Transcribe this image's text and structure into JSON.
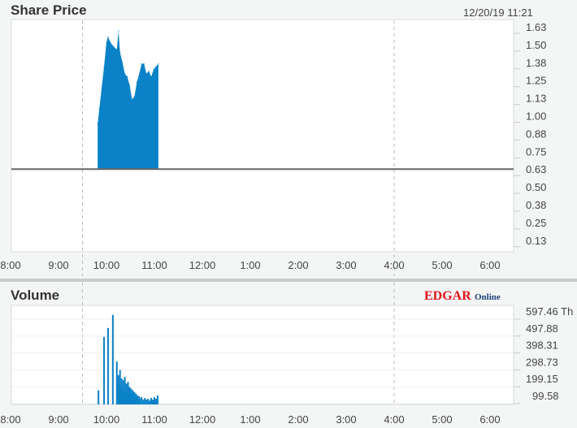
{
  "header": {
    "title": "Share Price",
    "timestamp": "12/20/19  11:21"
  },
  "volume_panel": {
    "title": "Volume",
    "logo_text": "EDGAR Online"
  },
  "colors": {
    "series": "#0b82c8",
    "baseline": "#666666",
    "grid": "#bbbbbb",
    "logo_red": "#e0121b",
    "logo_blue": "#1c3f7c"
  },
  "chart_data": [
    {
      "type": "area",
      "title": "Share Price",
      "x_ticks": [
        "8:00",
        "9:00",
        "10:00",
        "11:00",
        "12:00",
        "1:00",
        "2:00",
        "3:00",
        "4:00",
        "5:00",
        "6:00"
      ],
      "y_ticks": [
        "1.63",
        "1.50",
        "1.38",
        "1.25",
        "1.13",
        "1.00",
        "0.88",
        "0.75",
        "0.63",
        "0.50",
        "0.38",
        "0.25",
        "0.13"
      ],
      "ylim": [
        0.05,
        1.66
      ],
      "reference_line": 0.63,
      "session_markers": [
        "9:30",
        "16:00"
      ],
      "grid": false,
      "points": [
        [
          "9:49",
          0.95
        ],
        [
          "9:51",
          1.05
        ],
        [
          "9:54",
          1.2
        ],
        [
          "9:57",
          1.35
        ],
        [
          "10:00",
          1.52
        ],
        [
          "10:02",
          1.56
        ],
        [
          "10:05",
          1.52
        ],
        [
          "10:09",
          1.49
        ],
        [
          "10:13",
          1.47
        ],
        [
          "10:15",
          1.6
        ],
        [
          "10:17",
          1.45
        ],
        [
          "10:20",
          1.38
        ],
        [
          "10:23",
          1.3
        ],
        [
          "10:26",
          1.28
        ],
        [
          "10:29",
          1.22
        ],
        [
          "10:32",
          1.12
        ],
        [
          "10:35",
          1.14
        ],
        [
          "10:38",
          1.24
        ],
        [
          "10:41",
          1.3
        ],
        [
          "10:44",
          1.37
        ],
        [
          "10:47",
          1.37
        ],
        [
          "10:50",
          1.3
        ],
        [
          "10:53",
          1.32
        ],
        [
          "10:56",
          1.28
        ],
        [
          "10:59",
          1.33
        ],
        [
          "11:02",
          1.35
        ],
        [
          "11:05",
          1.37
        ]
      ]
    },
    {
      "type": "bar",
      "title": "Volume",
      "y_unit": "Th",
      "x_ticks": [
        "8:00",
        "9:00",
        "10:00",
        "11:00",
        "12:00",
        "1:00",
        "2:00",
        "3:00",
        "4:00",
        "5:00",
        "6:00"
      ],
      "y_ticks": [
        "597.46 Th",
        "497.88",
        "398.31",
        "298.73",
        "199.15",
        "99.58"
      ],
      "grid": true,
      "bars": [
        [
          "9:50",
          130
        ],
        [
          "9:57",
          445
        ],
        [
          "10:02",
          498
        ],
        [
          "10:08",
          575
        ],
        [
          "10:13",
          300
        ],
        [
          "10:14",
          180
        ],
        [
          "10:15",
          220
        ],
        [
          "10:16",
          160
        ],
        [
          "10:17",
          250
        ],
        [
          "10:18",
          150
        ],
        [
          "10:19",
          200
        ],
        [
          "10:20",
          140
        ],
        [
          "10:21",
          190
        ],
        [
          "10:22",
          130
        ],
        [
          "10:23",
          210
        ],
        [
          "10:24",
          120
        ],
        [
          "10:25",
          170
        ],
        [
          "10:26",
          120
        ],
        [
          "10:27",
          180
        ],
        [
          "10:28",
          110
        ],
        [
          "10:29",
          150
        ],
        [
          "10:30",
          110
        ],
        [
          "10:31",
          140
        ],
        [
          "10:32",
          100
        ],
        [
          "10:33",
          130
        ],
        [
          "10:34",
          95
        ],
        [
          "10:35",
          120
        ],
        [
          "10:36",
          90
        ],
        [
          "10:37",
          110
        ],
        [
          "10:38",
          85
        ],
        [
          "10:39",
          100
        ],
        [
          "10:40",
          80
        ],
        [
          "10:41",
          95
        ],
        [
          "10:42",
          80
        ],
        [
          "10:44",
          90
        ],
        [
          "10:46",
          75
        ],
        [
          "10:48",
          85
        ],
        [
          "10:50",
          75
        ],
        [
          "10:52",
          80
        ],
        [
          "10:54",
          70
        ],
        [
          "10:56",
          85
        ],
        [
          "10:58",
          75
        ],
        [
          "11:00",
          90
        ],
        [
          "11:02",
          80
        ],
        [
          "11:04",
          100
        ]
      ]
    }
  ]
}
